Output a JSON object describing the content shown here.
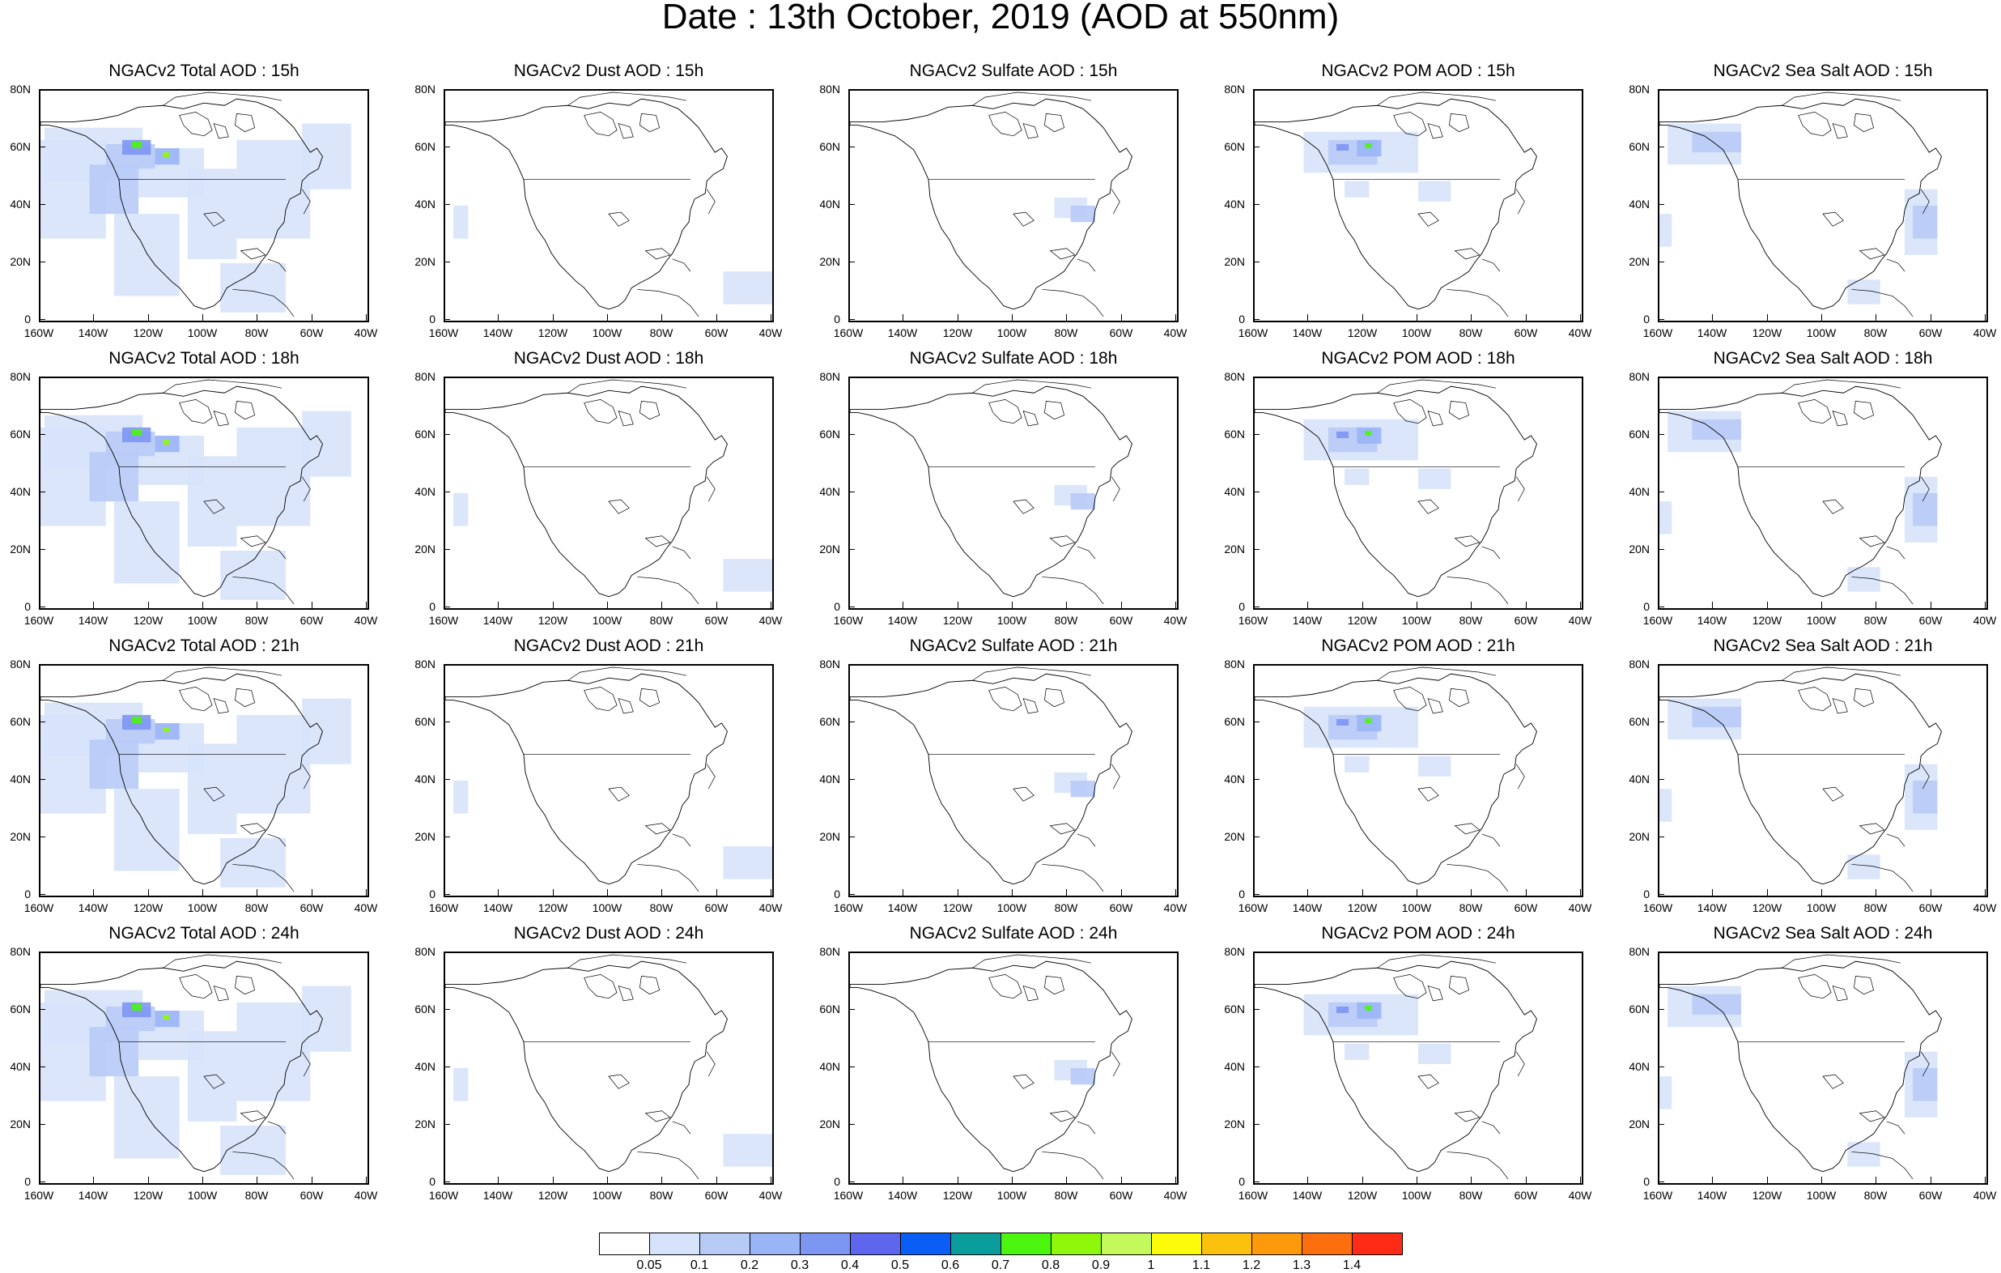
{
  "title": "Date : 13th October, 2019 (AOD at 550nm)",
  "y_ticks": [
    "80N",
    "60N",
    "40N",
    "20N",
    "0"
  ],
  "x_ticks": [
    "160W",
    "140W",
    "120W",
    "100W",
    "80W",
    "60W",
    "40W"
  ],
  "panels": [
    {
      "title": "NGACv2 Total AOD : 15h",
      "species": "total"
    },
    {
      "title": "NGACv2 Dust AOD : 15h",
      "species": "dust"
    },
    {
      "title": "NGACv2 Sulfate AOD : 15h",
      "species": "sulfate"
    },
    {
      "title": "NGACv2 POM AOD : 15h",
      "species": "pom"
    },
    {
      "title": "NGACv2 Sea Salt AOD : 15h",
      "species": "seasalt"
    },
    {
      "title": "NGACv2 Total AOD : 18h",
      "species": "total"
    },
    {
      "title": "NGACv2 Dust AOD : 18h",
      "species": "dust"
    },
    {
      "title": "NGACv2 Sulfate AOD : 18h",
      "species": "sulfate"
    },
    {
      "title": "NGACv2 POM AOD : 18h",
      "species": "pom"
    },
    {
      "title": "NGACv2 Sea Salt AOD : 18h",
      "species": "seasalt"
    },
    {
      "title": "NGACv2 Total AOD : 21h",
      "species": "total"
    },
    {
      "title": "NGACv2 Dust AOD : 21h",
      "species": "dust"
    },
    {
      "title": "NGACv2 Sulfate AOD : 21h",
      "species": "sulfate"
    },
    {
      "title": "NGACv2 POM AOD : 21h",
      "species": "pom"
    },
    {
      "title": "NGACv2 Sea Salt AOD : 21h",
      "species": "seasalt"
    },
    {
      "title": "NGACv2 Total AOD : 24h",
      "species": "total"
    },
    {
      "title": "NGACv2 Dust AOD : 24h",
      "species": "dust"
    },
    {
      "title": "NGACv2 Sulfate AOD : 24h",
      "species": "sulfate"
    },
    {
      "title": "NGACv2 POM AOD : 24h",
      "species": "pom"
    },
    {
      "title": "NGACv2 Sea Salt  AOD : 24h",
      "species": "seasalt"
    }
  ],
  "colorbar": {
    "colors": [
      "#ffffff",
      "#d7e3fb",
      "#b8cbf7",
      "#9ab5f6",
      "#7d96f2",
      "#5f66ee",
      "#0a5ef6",
      "#0b9c9c",
      "#4bf50d",
      "#8ff80a",
      "#c5f85a",
      "#fcfb09",
      "#fcc10d",
      "#fd9a0c",
      "#fd6e0e",
      "#fe2b17"
    ],
    "labels": [
      "0.05",
      "0.1",
      "0.2",
      "0.3",
      "0.4",
      "0.5",
      "0.6",
      "0.7",
      "0.8",
      "0.9",
      "1",
      "1.1",
      "1.2",
      "1.3",
      "1.4"
    ]
  }
}
